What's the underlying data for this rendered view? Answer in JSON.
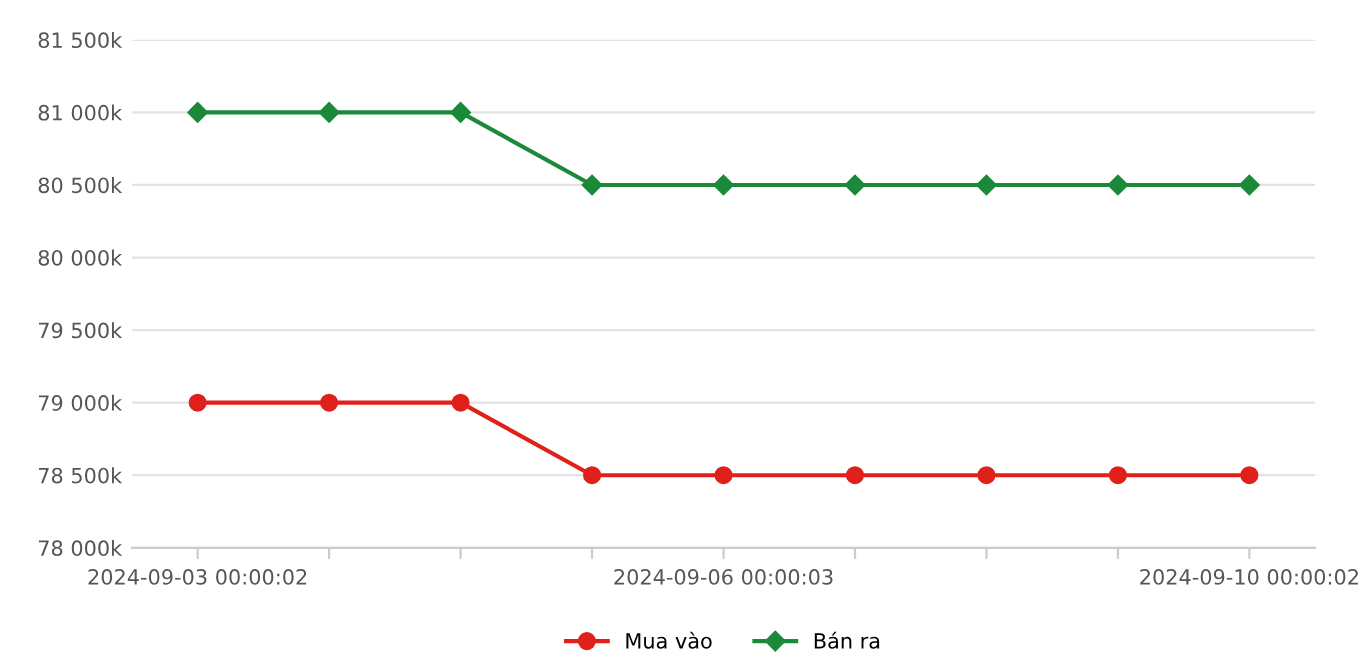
{
  "chart_data": {
    "type": "line",
    "categories": [
      "2024-09-03 00:00:02",
      null,
      null,
      null,
      "2024-09-06 00:00:03",
      null,
      null,
      null,
      "2024-09-10 00:00:02"
    ],
    "series": [
      {
        "name": "Mua vào",
        "color": "#e0201b",
        "marker": "circle",
        "values": [
          79000,
          79000,
          79000,
          78500,
          78500,
          78500,
          78500,
          78500,
          78500
        ]
      },
      {
        "name": "Bán ra",
        "color": "#1a8a3a",
        "marker": "diamond",
        "values": [
          81000,
          81000,
          81000,
          80500,
          80500,
          80500,
          80500,
          80500,
          80500
        ]
      }
    ],
    "ylim": [
      78000,
      81500
    ],
    "yticks": [
      {
        "value": 78000,
        "label": "78 000k"
      },
      {
        "value": 78500,
        "label": "78 500k"
      },
      {
        "value": 79000,
        "label": "79 000k"
      },
      {
        "value": 79500,
        "label": "79 500k"
      },
      {
        "value": 80000,
        "label": "80 000k"
      },
      {
        "value": 80500,
        "label": "80 500k"
      },
      {
        "value": 81000,
        "label": "81 000k"
      },
      {
        "value": 81500,
        "label": "81 500k"
      }
    ],
    "grid": "y",
    "legend": "bottom",
    "line_style": "solid"
  }
}
